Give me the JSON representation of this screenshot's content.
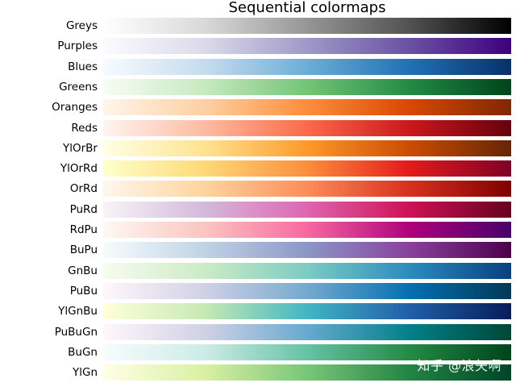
{
  "chart_data": {
    "type": "heatmap",
    "title": "Sequential colormaps",
    "colormaps": [
      {
        "name": "Greys",
        "stops": [
          "#ffffff",
          "#d9d9d9",
          "#969696",
          "#525252",
          "#000000"
        ]
      },
      {
        "name": "Purples",
        "stops": [
          "#fcfbfd",
          "#dadaeb",
          "#9e9ac8",
          "#6a51a3",
          "#3f007d"
        ]
      },
      {
        "name": "Blues",
        "stops": [
          "#f7fbff",
          "#c6dbef",
          "#6baed6",
          "#2171b5",
          "#08306b"
        ]
      },
      {
        "name": "Greens",
        "stops": [
          "#f7fcf5",
          "#c7e9c0",
          "#74c476",
          "#238b45",
          "#00441b"
        ]
      },
      {
        "name": "Oranges",
        "stops": [
          "#fff5eb",
          "#fdd0a2",
          "#fd8d3c",
          "#d94801",
          "#7f2704"
        ]
      },
      {
        "name": "Reds",
        "stops": [
          "#fff5f0",
          "#fcbba1",
          "#fb6a4a",
          "#cb181d",
          "#67000d"
        ]
      },
      {
        "name": "YlOrBr",
        "stops": [
          "#ffffe5",
          "#fee391",
          "#fe9929",
          "#cc4c02",
          "#662506"
        ]
      },
      {
        "name": "YlOrRd",
        "stops": [
          "#ffffcc",
          "#fed976",
          "#fd8d3c",
          "#e31a1c",
          "#800026"
        ]
      },
      {
        "name": "OrRd",
        "stops": [
          "#fff7ec",
          "#fdd49e",
          "#fc8d59",
          "#d7301f",
          "#7f0000"
        ]
      },
      {
        "name": "PuRd",
        "stops": [
          "#f7f4f9",
          "#d4b9da",
          "#df65b0",
          "#ce1256",
          "#67001f"
        ]
      },
      {
        "name": "RdPu",
        "stops": [
          "#fff7f3",
          "#fcc5c0",
          "#f768a1",
          "#ae017e",
          "#49006a"
        ]
      },
      {
        "name": "BuPu",
        "stops": [
          "#f7fcfd",
          "#bfd3e6",
          "#8c96c6",
          "#88419d",
          "#4d004b"
        ]
      },
      {
        "name": "GnBu",
        "stops": [
          "#f7fcf0",
          "#ccebc5",
          "#7bccc4",
          "#2b8cbe",
          "#084081"
        ]
      },
      {
        "name": "PuBu",
        "stops": [
          "#fff7fb",
          "#d0d1e6",
          "#74a9cf",
          "#0570b0",
          "#023858"
        ]
      },
      {
        "name": "YlGnBu",
        "stops": [
          "#ffffd9",
          "#c7e9b4",
          "#41b6c4",
          "#225ea8",
          "#081d58"
        ]
      },
      {
        "name": "PuBuGn",
        "stops": [
          "#fff7fb",
          "#d0d1e6",
          "#67a9cf",
          "#02818a",
          "#014636"
        ]
      },
      {
        "name": "BuGn",
        "stops": [
          "#f7fcfd",
          "#ccece6",
          "#66c2a4",
          "#238b45",
          "#00441b"
        ]
      },
      {
        "name": "YlGn",
        "stops": [
          "#ffffe5",
          "#d9f0a3",
          "#78c679",
          "#238443",
          "#004529"
        ]
      }
    ]
  },
  "watermark": "知乎 @浪矢啊"
}
